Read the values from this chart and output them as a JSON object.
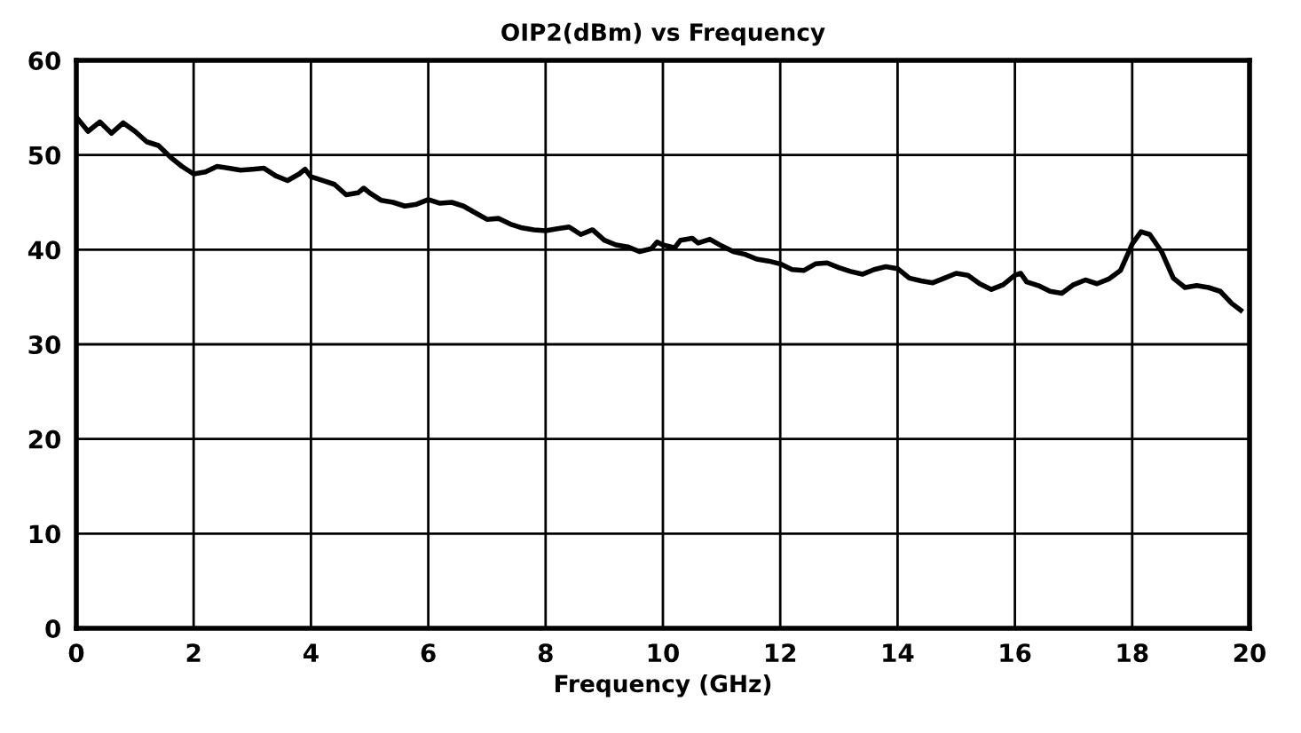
{
  "chart_data": {
    "type": "line",
    "title": "OIP2(dBm) vs Frequency",
    "xlabel": "Frequency (GHz)",
    "xlim": [
      0,
      20
    ],
    "xticks": [
      0,
      2,
      4,
      6,
      8,
      10,
      12,
      14,
      16,
      18,
      20
    ],
    "ylim": [
      0,
      60
    ],
    "yticks": [
      0,
      10,
      20,
      30,
      40,
      50,
      60
    ],
    "grid": true,
    "series": [
      {
        "color": "#000000",
        "x": [
          0,
          0.2,
          0.4,
          0.6,
          0.8,
          1.0,
          1.2,
          1.4,
          1.6,
          1.8,
          2.0,
          2.2,
          2.4,
          2.6,
          2.8,
          3.0,
          3.2,
          3.4,
          3.6,
          3.8,
          3.9,
          4.0,
          4.2,
          4.4,
          4.6,
          4.8,
          4.9,
          5.0,
          5.2,
          5.4,
          5.6,
          5.8,
          6.0,
          6.2,
          6.4,
          6.6,
          6.8,
          7.0,
          7.2,
          7.4,
          7.6,
          7.8,
          8.0,
          8.2,
          8.4,
          8.6,
          8.8,
          9.0,
          9.2,
          9.4,
          9.6,
          9.8,
          9.9,
          10.0,
          10.2,
          10.3,
          10.5,
          10.6,
          10.8,
          11.0,
          11.2,
          11.4,
          11.6,
          11.8,
          12.0,
          12.2,
          12.4,
          12.6,
          12.8,
          13.0,
          13.2,
          13.4,
          13.6,
          13.8,
          14.0,
          14.2,
          14.4,
          14.6,
          14.8,
          15.0,
          15.2,
          15.4,
          15.6,
          15.8,
          16.0,
          16.1,
          16.2,
          16.4,
          16.6,
          16.8,
          17.0,
          17.2,
          17.4,
          17.6,
          17.8,
          18.0,
          18.15,
          18.3,
          18.5,
          18.7,
          18.9,
          19.1,
          19.3,
          19.5,
          19.7,
          19.85
        ],
        "values": [
          54,
          52.5,
          53.5,
          52.3,
          53.4,
          52.5,
          51.4,
          51,
          49.8,
          48.8,
          48,
          48.2,
          48.8,
          48.6,
          48.4,
          48.5,
          48.6,
          47.8,
          47.3,
          48,
          48.5,
          47.7,
          47.3,
          46.9,
          45.8,
          46,
          46.5,
          46,
          45.2,
          45,
          44.6,
          44.8,
          45.3,
          44.9,
          45,
          44.6,
          43.9,
          43.2,
          43.3,
          42.7,
          42.3,
          42.1,
          42,
          42.2,
          42.4,
          41.6,
          42.1,
          41,
          40.5,
          40.3,
          39.8,
          40.1,
          40.8,
          40.5,
          40.2,
          41,
          41.2,
          40.7,
          41.1,
          40.4,
          39.8,
          39.5,
          39,
          38.8,
          38.5,
          37.9,
          37.8,
          38.5,
          38.6,
          38.1,
          37.7,
          37.4,
          37.9,
          38.2,
          38,
          37,
          36.7,
          36.5,
          37,
          37.5,
          37.3,
          36.4,
          35.8,
          36.3,
          37.3,
          37.5,
          36.6,
          36.2,
          35.6,
          35.4,
          36.3,
          36.8,
          36.4,
          36.9,
          37.8,
          40.6,
          41.9,
          41.6,
          39.8,
          37,
          36,
          36.2,
          36,
          35.6,
          34.3,
          33.6
        ]
      }
    ]
  }
}
